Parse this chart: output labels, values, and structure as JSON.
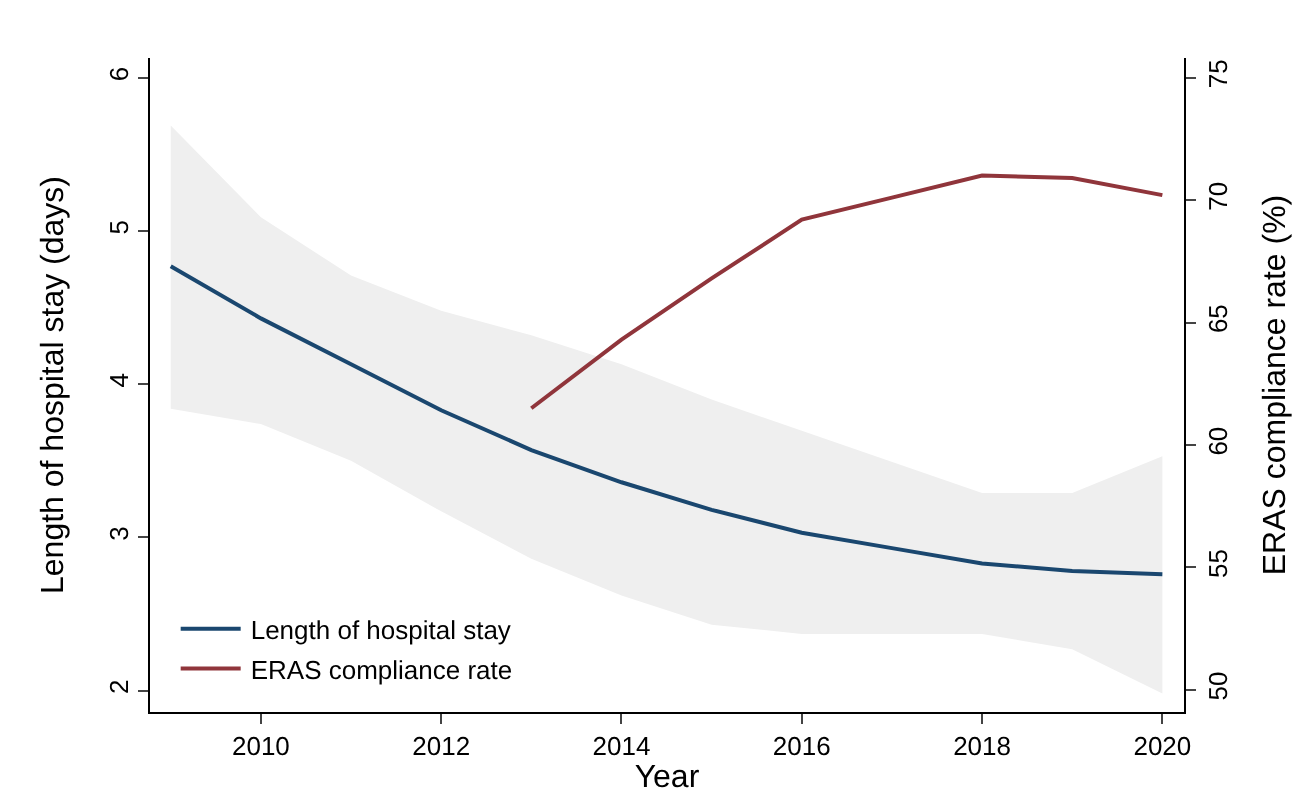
{
  "chart_data": {
    "type": "line",
    "xlabel": "Year",
    "ylabel": "Length of hospital stay (days)",
    "y2label": "ERAS compliance rate (%)",
    "x": [
      2009,
      2010,
      2011,
      2012,
      2013,
      2014,
      2015,
      2016,
      2017,
      2018,
      2019,
      2020
    ],
    "series": [
      {
        "name": "Length of hospital stay",
        "color": "#1a476f",
        "values": [
          4.77,
          4.43,
          4.13,
          3.83,
          3.57,
          3.36,
          3.18,
          3.03,
          2.93,
          2.83,
          2.78,
          2.76
        ],
        "lower": [
          3.84,
          3.74,
          3.5,
          3.17,
          2.86,
          2.62,
          2.43,
          2.37,
          2.37,
          2.37,
          2.27,
          1.98
        ],
        "upper": [
          5.69,
          5.09,
          4.71,
          4.48,
          4.32,
          4.13,
          3.9,
          3.7,
          3.49,
          3.29,
          3.29,
          3.53
        ]
      },
      {
        "name": "ERAS compliance rate",
        "color": "#90353b",
        "axis": "y2",
        "x": [
          2013,
          2014,
          2015,
          2016,
          2017,
          2018,
          2019,
          2020
        ],
        "values": [
          61.5,
          64.3,
          66.8,
          69.2,
          70.1,
          71.0,
          70.9,
          70.2
        ]
      }
    ],
    "xlim": [
      2008.77,
      2020.24
    ],
    "xticks": [
      2010,
      2012,
      2014,
      2016,
      2018,
      2020
    ],
    "ylim": [
      1.86,
      6.13
    ],
    "yticks": [
      2,
      3,
      4,
      5,
      6
    ],
    "y2lim": [
      49.1,
      75.8
    ],
    "y2ticks": [
      50,
      55,
      60,
      65,
      70,
      75
    ],
    "legend": "bottom left",
    "marker": "none",
    "line_style": "solid"
  }
}
